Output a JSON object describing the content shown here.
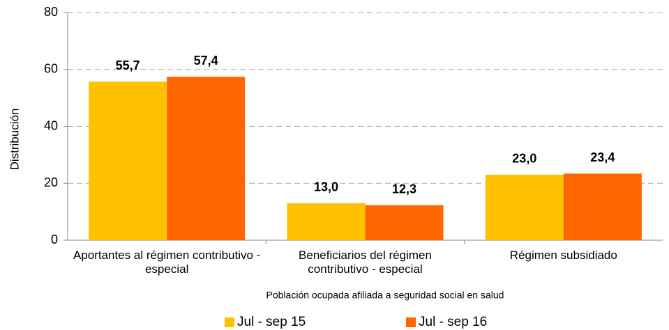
{
  "chart_data": {
    "type": "bar",
    "categories": [
      "Aportantes al régimen contributivo - especial",
      "Beneficiarios del régimen contributivo - especial",
      "Régimen subsidiado"
    ],
    "series": [
      {
        "name": "Jul - sep 15",
        "color": "#ffc000",
        "values": [
          55.7,
          13.0,
          23.0
        ],
        "value_labels": [
          "55,7",
          "13,0",
          "23,0"
        ]
      },
      {
        "name": "Jul - sep 16",
        "color": "#ff6600",
        "values": [
          57.4,
          12.3,
          23.4
        ],
        "value_labels": [
          "57,4",
          "12,3",
          "23,4"
        ]
      }
    ],
    "ylabel": "Distribución",
    "xlabel": "Población ocupada afiliada a seguridad social en salud",
    "ylim": [
      0,
      80
    ],
    "yticks": [
      0,
      20,
      40,
      60,
      80
    ],
    "grid": true,
    "legend": "bottom"
  }
}
